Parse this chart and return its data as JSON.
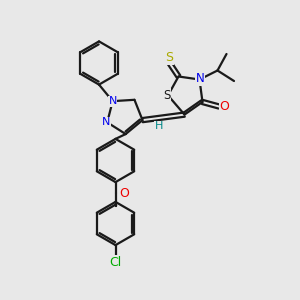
{
  "bg_color": "#e8e8e8",
  "bond_color": "#1a1a1a",
  "N_color": "#0000ee",
  "O_color": "#ee0000",
  "S_color": "#aaaa00",
  "Cl_color": "#00aa00",
  "H_color": "#008888",
  "line_width": 1.6,
  "figsize": [
    3.0,
    3.0
  ],
  "dpi": 100,
  "xlim": [
    0,
    10
  ],
  "ylim": [
    0,
    10
  ]
}
